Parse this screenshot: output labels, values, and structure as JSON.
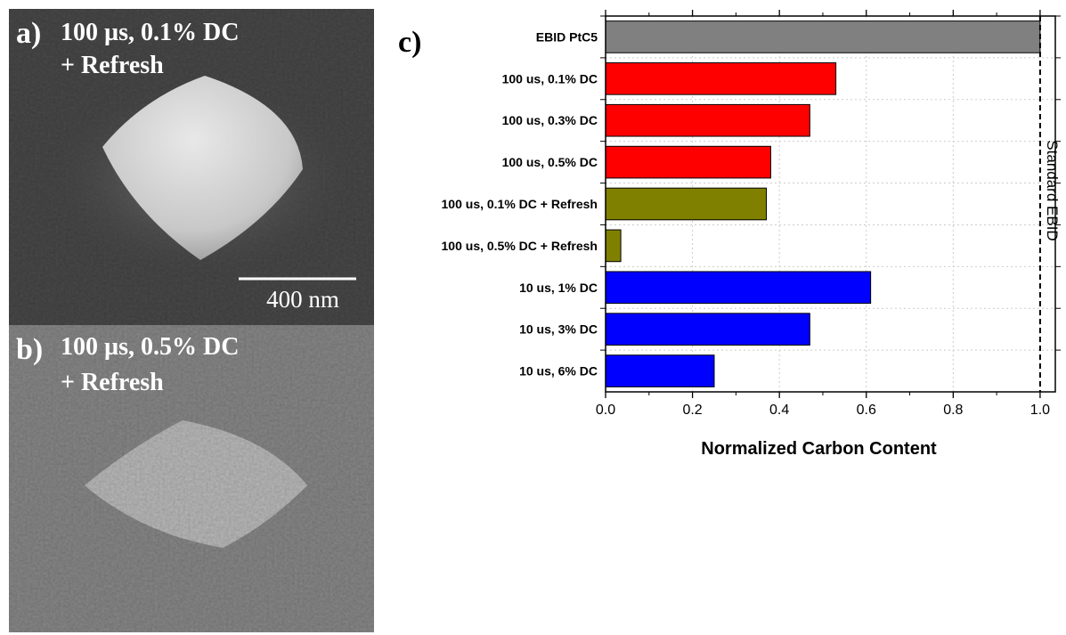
{
  "panels": {
    "a": {
      "label": "a)",
      "line1": "100 µs, 0.1% DC",
      "line2": "+ Refresh",
      "scale_bar": "400 nm"
    },
    "b": {
      "label": "b)",
      "line1": "100 µs, 0.5% DC",
      "line2": "+ Refresh"
    },
    "c": {
      "label": "c)"
    }
  },
  "chart_data": {
    "type": "barh",
    "xlabel": "Normalized Carbon Content",
    "categories": [
      "EBID PtC5",
      "100 us, 0.1% DC",
      "100 us, 0.3% DC",
      "100 us, 0.5% DC",
      "100 us, 0.1% DC + Refresh",
      "100 us, 0.5% DC + Refresh",
      "10 us, 1% DC",
      "10 us, 3% DC",
      "10 us, 6% DC"
    ],
    "values": [
      1.0,
      0.53,
      0.47,
      0.38,
      0.37,
      0.035,
      0.61,
      0.47,
      0.25
    ],
    "colors": [
      "#808080",
      "#ff0000",
      "#ff0000",
      "#ff0000",
      "#808000",
      "#808000",
      "#0000ff",
      "#0000ff",
      "#0000ff"
    ],
    "xlim": [
      0,
      1.035
    ],
    "xticks": [
      {
        "value": 0,
        "label": "0.0"
      },
      0.2,
      0.4,
      0.6,
      0.8,
      {
        "value": 1,
        "label": "1.0"
      }
    ],
    "reference_line": 1,
    "annotation": "Standard EBID",
    "grid": true
  }
}
